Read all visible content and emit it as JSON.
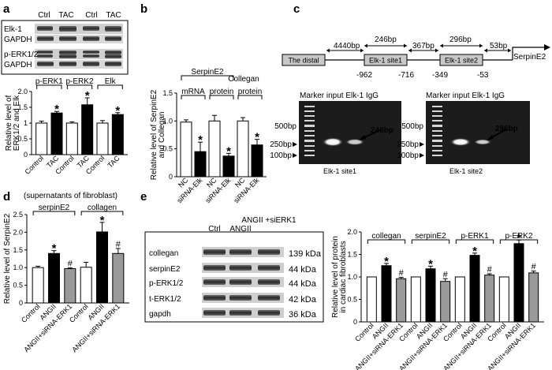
{
  "panels": {
    "a": {
      "label": "a",
      "blot": {
        "lanes": [
          "Ctrl",
          "TAC",
          "Ctrl",
          "TAC"
        ],
        "rows": [
          "Elk-1",
          "GAPDH",
          "p-ERK1/2",
          "GAPDH"
        ]
      },
      "chart_data": {
        "type": "bar",
        "ylabel": "Relative level of ERK1/2 and Elk",
        "ylim": [
          0,
          2.0
        ],
        "yticks": [
          "0",
          "0.5",
          "1",
          "1.5",
          "2.0"
        ],
        "groups": [
          "p-ERK1",
          "p-ERK2",
          "Elk"
        ],
        "categories": [
          "Control",
          "TAC",
          "Control",
          "TAC",
          "Control",
          "TAC"
        ],
        "values": [
          1.0,
          1.32,
          1.0,
          1.58,
          1.0,
          1.27
        ],
        "errors": [
          0.06,
          0.05,
          0.04,
          0.22,
          0.08,
          0.06
        ],
        "fill": [
          "white",
          "black",
          "white",
          "black",
          "white",
          "black"
        ],
        "marks": [
          "",
          "*",
          "",
          "*",
          "",
          "*"
        ]
      }
    },
    "b": {
      "label": "b",
      "chart_data": {
        "type": "bar",
        "ylabel": "Relative level of SerpinE2 and Collegan",
        "ylim": [
          0,
          1.5
        ],
        "yticks": [
          "0",
          "0.5",
          "1.0",
          "1.5"
        ],
        "header": [
          "SerpinE2",
          "Collegan"
        ],
        "groups": [
          "mRNA",
          "protein",
          "protein"
        ],
        "categories": [
          "NC",
          "siRNA-Elk",
          "NC",
          "siRNA-Elk",
          "NC",
          "siRNA-Elk"
        ],
        "values": [
          0.98,
          0.45,
          1.0,
          0.37,
          1.0,
          0.57
        ],
        "errors": [
          0.04,
          0.17,
          0.1,
          0.05,
          0.06,
          0.1
        ],
        "fill": [
          "white",
          "black",
          "white",
          "black",
          "white",
          "black"
        ],
        "marks": [
          "",
          "*",
          "",
          "*",
          "",
          "*"
        ]
      }
    },
    "c": {
      "label": "c",
      "diagram": {
        "distal": "The distal",
        "site1": "Elk-1 site1",
        "site2": "Elk-1 site2",
        "gene": "SerpinE2",
        "spans": [
          "4440bp",
          "246bp",
          "367bp",
          "296bp",
          "53bp"
        ],
        "positions": [
          "-962",
          "-716",
          "-349",
          "-53"
        ]
      },
      "gels": [
        {
          "header": "Marker input Elk-1 IgG",
          "markers": [
            "500bp",
            "250bp",
            "100bp"
          ],
          "band": "246bp",
          "caption": "Elk-1 site1"
        },
        {
          "header": "Marker input Elk-1 IgG",
          "markers": [
            "500bp",
            "250bp",
            "100bp"
          ],
          "band": "296bp",
          "caption": "Elk-1 site2"
        }
      ]
    },
    "d": {
      "label": "d",
      "chart_data": {
        "type": "bar",
        "header": "(supernatants of fibroblast)",
        "groups": [
          "serpinE2",
          "collagen"
        ],
        "ylabel": "Relative level of SerpinE2",
        "ylim": [
          0,
          2.5
        ],
        "yticks": [
          "0",
          "0.5",
          "1.0",
          "1.5",
          "2.0",
          "2.5"
        ],
        "categories": [
          "Control",
          "ANGII",
          "ANGII+siRNA-ERK1",
          "Control",
          "ANGII",
          "ANGII+siRNA-ERK1"
        ],
        "values": [
          1.0,
          1.4,
          0.97,
          1.01,
          2.01,
          1.4
        ],
        "errors": [
          0.04,
          0.08,
          0.02,
          0.14,
          0.27,
          0.14
        ],
        "fill": [
          "white",
          "black",
          "gray",
          "white",
          "black",
          "gray"
        ],
        "marks": [
          "",
          "*",
          "#",
          "",
          "*",
          "#"
        ]
      }
    },
    "e": {
      "label": "e",
      "blot": {
        "lanes": [
          "Ctrl",
          "ANGII",
          "ANGII +siERK1"
        ],
        "rows": [
          "collegan",
          "serpinE2",
          "p-ERK1/2",
          "t-ERK1/2",
          "gapdh"
        ],
        "sizes": [
          "139 kDa",
          "44 kDa",
          "44 kDa",
          "42 kDa",
          "36 kDa"
        ]
      },
      "chart_data": {
        "type": "bar",
        "ylabel": "Relative level of protein in cardiac fibroblasts",
        "ylim": [
          0,
          2.0
        ],
        "yticks": [
          "0",
          "0.5",
          "1.0",
          "1.5",
          "2.0"
        ],
        "groups": [
          "collegan",
          "serpinE2",
          "p-ERK1",
          "p-ERK2"
        ],
        "categories": [
          "Control",
          "ANGII",
          "ANGII+siRNA-ERK1",
          "Control",
          "ANGII",
          "ANGII+siRNA-ERK1",
          "Control",
          "ANGII",
          "ANGII+siRNA-ERK1",
          "Control",
          "ANGII",
          "ANGII+siRNA-ERK1"
        ],
        "values": [
          1.0,
          1.25,
          0.96,
          1.0,
          1.18,
          0.9,
          1.0,
          1.48,
          1.04,
          1.0,
          1.74,
          1.09
        ],
        "errors": [
          0,
          0.05,
          0.03,
          0,
          0.06,
          0.06,
          0,
          0.05,
          0.03,
          0,
          0.08,
          0.04
        ],
        "fill": [
          "white",
          "black",
          "gray",
          "white",
          "black",
          "gray",
          "white",
          "black",
          "gray",
          "white",
          "black",
          "gray"
        ],
        "marks": [
          "",
          "*",
          "#",
          "",
          "*",
          "#",
          "",
          "*",
          "#",
          "",
          "*",
          "#"
        ]
      }
    }
  },
  "colors": {
    "gel_bg": "#1a1a1a",
    "blot_bg": "#d9d9d9",
    "band": "#2b2b2b",
    "gray_bar": "#9a9a9a"
  }
}
